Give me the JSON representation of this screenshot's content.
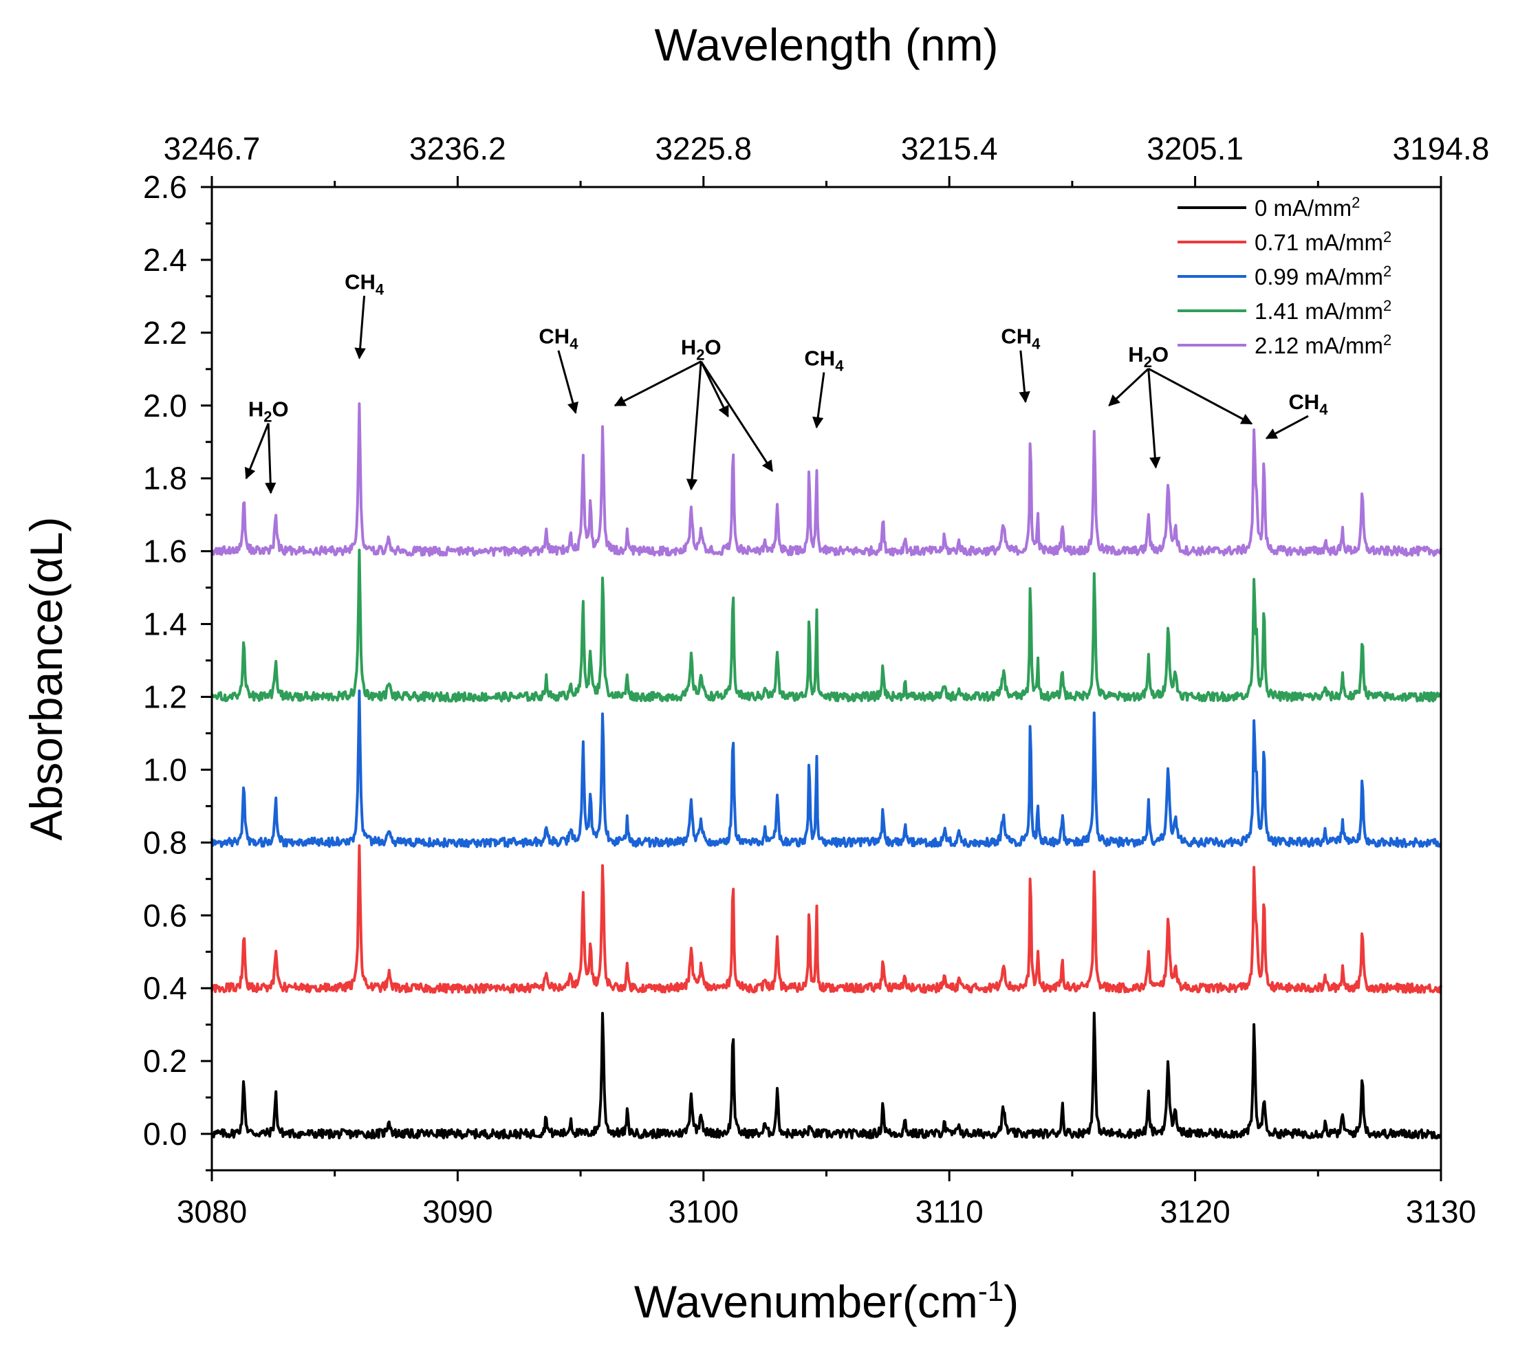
{
  "chart_data": {
    "type": "line",
    "title": "",
    "xlabel": "Wavenumber(cm",
    "xlabel_sup": "-1",
    "xlabel_end": ")",
    "ylabel": "Absorbance(αL)",
    "top_xlabel": "Wavelength (nm)",
    "xlim": [
      3080,
      3130
    ],
    "ylim": [
      -0.1,
      2.6
    ],
    "x_ticks": [
      "3080",
      "3090",
      "3100",
      "3110",
      "3120",
      "3130"
    ],
    "y_ticks": [
      "0.0",
      "0.2",
      "0.4",
      "0.6",
      "0.8",
      "1.0",
      "1.2",
      "1.4",
      "1.6",
      "1.8",
      "2.0",
      "2.2",
      "2.4",
      "2.6"
    ],
    "top_ticks": [
      "3246.7",
      "3236.2",
      "3225.8",
      "3215.4",
      "3205.1",
      "3194.8"
    ],
    "grid": false,
    "legend_position": "top-right",
    "unit_prefix": " mA/mm",
    "unit_sup": "2",
    "baseline_noise": 0.004,
    "series": [
      {
        "name": "0",
        "color": "#000000",
        "offset": 0.0,
        "scale": 1.0,
        "include_ch4": false
      },
      {
        "name": "0.71",
        "color": "#ee3a3a",
        "offset": 0.4,
        "scale": 1.0,
        "include_ch4": true
      },
      {
        "name": "0.99",
        "color": "#1a63d6",
        "offset": 0.8,
        "scale": 1.05,
        "include_ch4": true
      },
      {
        "name": "1.41",
        "color": "#2e9e58",
        "offset": 1.2,
        "scale": 1.0,
        "include_ch4": true
      },
      {
        "name": "2.12",
        "color": "#a974db",
        "offset": 1.6,
        "scale": 1.0,
        "include_ch4": true
      }
    ],
    "h2o_peaks": [
      [
        3081.3,
        0.15,
        0.12
      ],
      [
        3082.6,
        0.11,
        0.12
      ],
      [
        3087.2,
        0.04,
        0.15
      ],
      [
        3093.6,
        0.05,
        0.12
      ],
      [
        3094.6,
        0.04,
        0.12
      ],
      [
        3095.9,
        0.34,
        0.12
      ],
      [
        3096.9,
        0.06,
        0.1
      ],
      [
        3099.5,
        0.11,
        0.15
      ],
      [
        3099.9,
        0.06,
        0.15
      ],
      [
        3101.2,
        0.3,
        0.1
      ],
      [
        3102.5,
        0.03,
        0.1
      ],
      [
        3103.0,
        0.13,
        0.11
      ],
      [
        3104.3,
        0.02,
        0.1
      ],
      [
        3107.3,
        0.09,
        0.1
      ],
      [
        3108.2,
        0.04,
        0.1
      ],
      [
        3109.8,
        0.04,
        0.1
      ],
      [
        3110.4,
        0.03,
        0.1
      ],
      [
        3112.2,
        0.07,
        0.18
      ],
      [
        3114.6,
        0.08,
        0.1
      ],
      [
        3115.9,
        0.34,
        0.11
      ],
      [
        3118.1,
        0.11,
        0.1
      ],
      [
        3118.9,
        0.19,
        0.15
      ],
      [
        3119.2,
        0.06,
        0.15
      ],
      [
        3122.4,
        0.31,
        0.11
      ],
      [
        3122.8,
        0.1,
        0.12
      ],
      [
        3125.3,
        0.03,
        0.1
      ],
      [
        3126.0,
        0.06,
        0.1
      ],
      [
        3126.8,
        0.17,
        0.11
      ]
    ],
    "ch4_peaks": [
      [
        3086.0,
        0.4,
        0.12
      ],
      [
        3095.1,
        0.26,
        0.12
      ],
      [
        3095.4,
        0.12,
        0.12
      ],
      [
        3104.3,
        0.24,
        0.07
      ],
      [
        3104.6,
        0.24,
        0.07
      ],
      [
        3113.3,
        0.35,
        0.08
      ],
      [
        3113.6,
        0.1,
        0.08
      ],
      [
        3122.5,
        0.12,
        0.12
      ],
      [
        3122.8,
        0.17,
        0.08
      ]
    ],
    "annotations": [
      {
        "label": "H",
        "sub": "2",
        "tail": "O",
        "tx": 3082.3,
        "ty": 1.97,
        "arrows": [
          [
            3081.4,
            1.8
          ],
          [
            3082.4,
            1.76
          ]
        ]
      },
      {
        "label": "CH",
        "sub": "4",
        "tail": "",
        "tx": 3086.2,
        "ty": 2.32,
        "arrows": [
          [
            3086.0,
            2.13
          ]
        ]
      },
      {
        "label": "CH",
        "sub": "4",
        "tail": "",
        "tx": 3094.1,
        "ty": 2.17,
        "arrows": [
          [
            3094.8,
            1.98
          ]
        ]
      },
      {
        "label": "H",
        "sub": "2",
        "tail": "O",
        "tx": 3099.9,
        "ty": 2.14,
        "arrows": [
          [
            3096.4,
            2.0
          ],
          [
            3099.5,
            1.77
          ],
          [
            3101.0,
            1.97
          ],
          [
            3102.8,
            1.82
          ]
        ]
      },
      {
        "label": "CH",
        "sub": "4",
        "tail": "",
        "tx": 3104.9,
        "ty": 2.11,
        "arrows": [
          [
            3104.6,
            1.94
          ]
        ]
      },
      {
        "label": "CH",
        "sub": "4",
        "tail": "",
        "tx": 3112.9,
        "ty": 2.17,
        "arrows": [
          [
            3113.1,
            2.01
          ]
        ]
      },
      {
        "label": "H",
        "sub": "2",
        "tail": "O",
        "tx": 3118.1,
        "ty": 2.12,
        "arrows": [
          [
            3116.5,
            2.0
          ],
          [
            3118.4,
            1.83
          ],
          [
            3122.3,
            1.95
          ]
        ]
      },
      {
        "label": "CH",
        "sub": "4",
        "tail": "",
        "tx": 3124.6,
        "ty": 1.99,
        "arrows": [
          [
            3122.9,
            1.91
          ]
        ]
      }
    ]
  }
}
